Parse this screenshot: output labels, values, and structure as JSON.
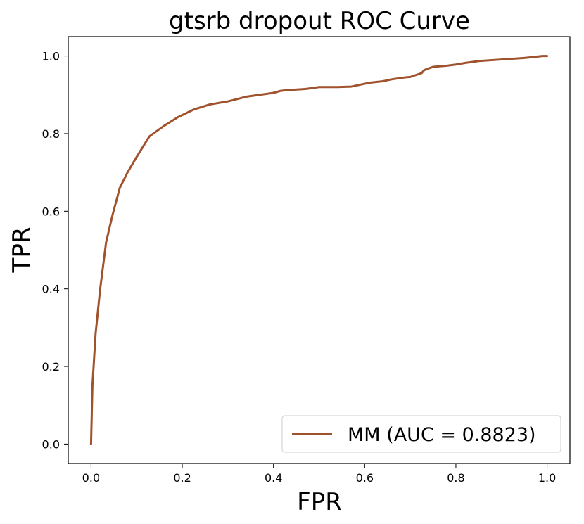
{
  "chart_data": {
    "type": "line",
    "title": "gtsrb dropout ROC Curve",
    "xlabel": "FPR",
    "ylabel": "TPR",
    "xlim": [
      -0.05,
      1.05
    ],
    "ylim": [
      -0.05,
      1.05
    ],
    "xticks": [
      "0.0",
      "0.2",
      "0.4",
      "0.6",
      "0.8",
      "1.0"
    ],
    "yticks": [
      "0.0",
      "0.2",
      "0.4",
      "0.6",
      "0.8",
      "1.0"
    ],
    "grid": false,
    "legend_position": "lower-right",
    "colors": {
      "line": "#a0522d"
    },
    "series": [
      {
        "name": "MM (AUC = 0.8823)",
        "x": [
          0.0,
          0.003,
          0.01,
          0.02,
          0.033,
          0.047,
          0.063,
          0.08,
          0.1,
          0.128,
          0.16,
          0.19,
          0.225,
          0.26,
          0.3,
          0.34,
          0.37,
          0.4,
          0.415,
          0.43,
          0.47,
          0.5,
          0.54,
          0.57,
          0.61,
          0.64,
          0.66,
          0.69,
          0.7,
          0.725,
          0.73,
          0.735,
          0.75,
          0.78,
          0.8,
          0.82,
          0.85,
          0.9,
          0.95,
          0.99,
          1.0
        ],
        "y": [
          0.0,
          0.15,
          0.285,
          0.4,
          0.52,
          0.59,
          0.66,
          0.7,
          0.74,
          0.793,
          0.82,
          0.842,
          0.862,
          0.875,
          0.883,
          0.895,
          0.9,
          0.905,
          0.91,
          0.912,
          0.915,
          0.92,
          0.92,
          0.921,
          0.931,
          0.935,
          0.94,
          0.945,
          0.946,
          0.956,
          0.963,
          0.966,
          0.972,
          0.975,
          0.978,
          0.982,
          0.987,
          0.991,
          0.995,
          1.0,
          1.0
        ]
      }
    ]
  }
}
